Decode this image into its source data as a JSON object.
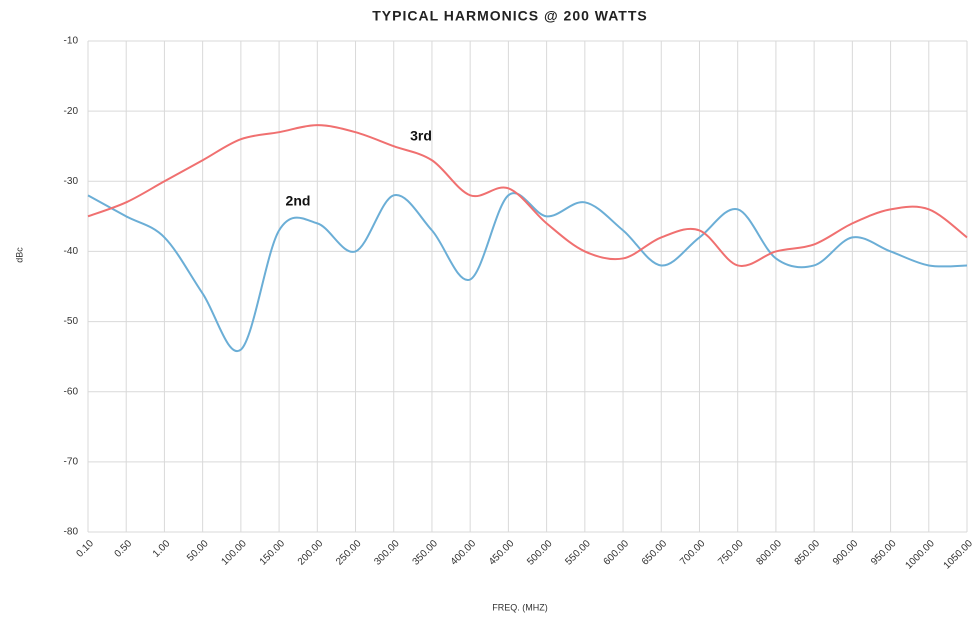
{
  "chart_data": {
    "type": "line",
    "title": "TYPICAL HARMONICS @ 200 WATTS",
    "x_label": "FREQ. (MHZ)",
    "y_label": "dBc",
    "categories": [
      "0.10",
      "0.50",
      "1.00",
      "50.00",
      "100.00",
      "150.00",
      "200.00",
      "250.00",
      "300.00",
      "350.00",
      "400.00",
      "450.00",
      "500.00",
      "550.00",
      "600.00",
      "650.00",
      "700.00",
      "750.00",
      "800.00",
      "850.00",
      "900.00",
      "950.00",
      "1000.00",
      "1050.00"
    ],
    "series": [
      {
        "name": "2nd",
        "color": "#6baed6",
        "values": [
          -32,
          -35,
          -38,
          -46,
          -54,
          -37,
          -36,
          -40,
          -32,
          -37,
          -44,
          -32,
          -35,
          -33,
          -37,
          -42,
          -38,
          -34,
          -41,
          -42,
          -38,
          -40,
          -42,
          -42
        ]
      },
      {
        "name": "3rd",
        "color": "#f07070",
        "values": [
          -35,
          -33,
          -30,
          -27,
          -24,
          -23,
          -22,
          -23,
          -25,
          -27,
          -32,
          -31,
          -36,
          -40,
          -41,
          -38,
          -37,
          -42,
          -40,
          -39,
          -36,
          -34,
          -34,
          -38
        ]
      }
    ],
    "ylim": [
      -80,
      -10
    ],
    "yticks": [
      -80,
      -70,
      -60,
      -50,
      -40,
      -30,
      -20,
      -10
    ],
    "grid": true
  }
}
